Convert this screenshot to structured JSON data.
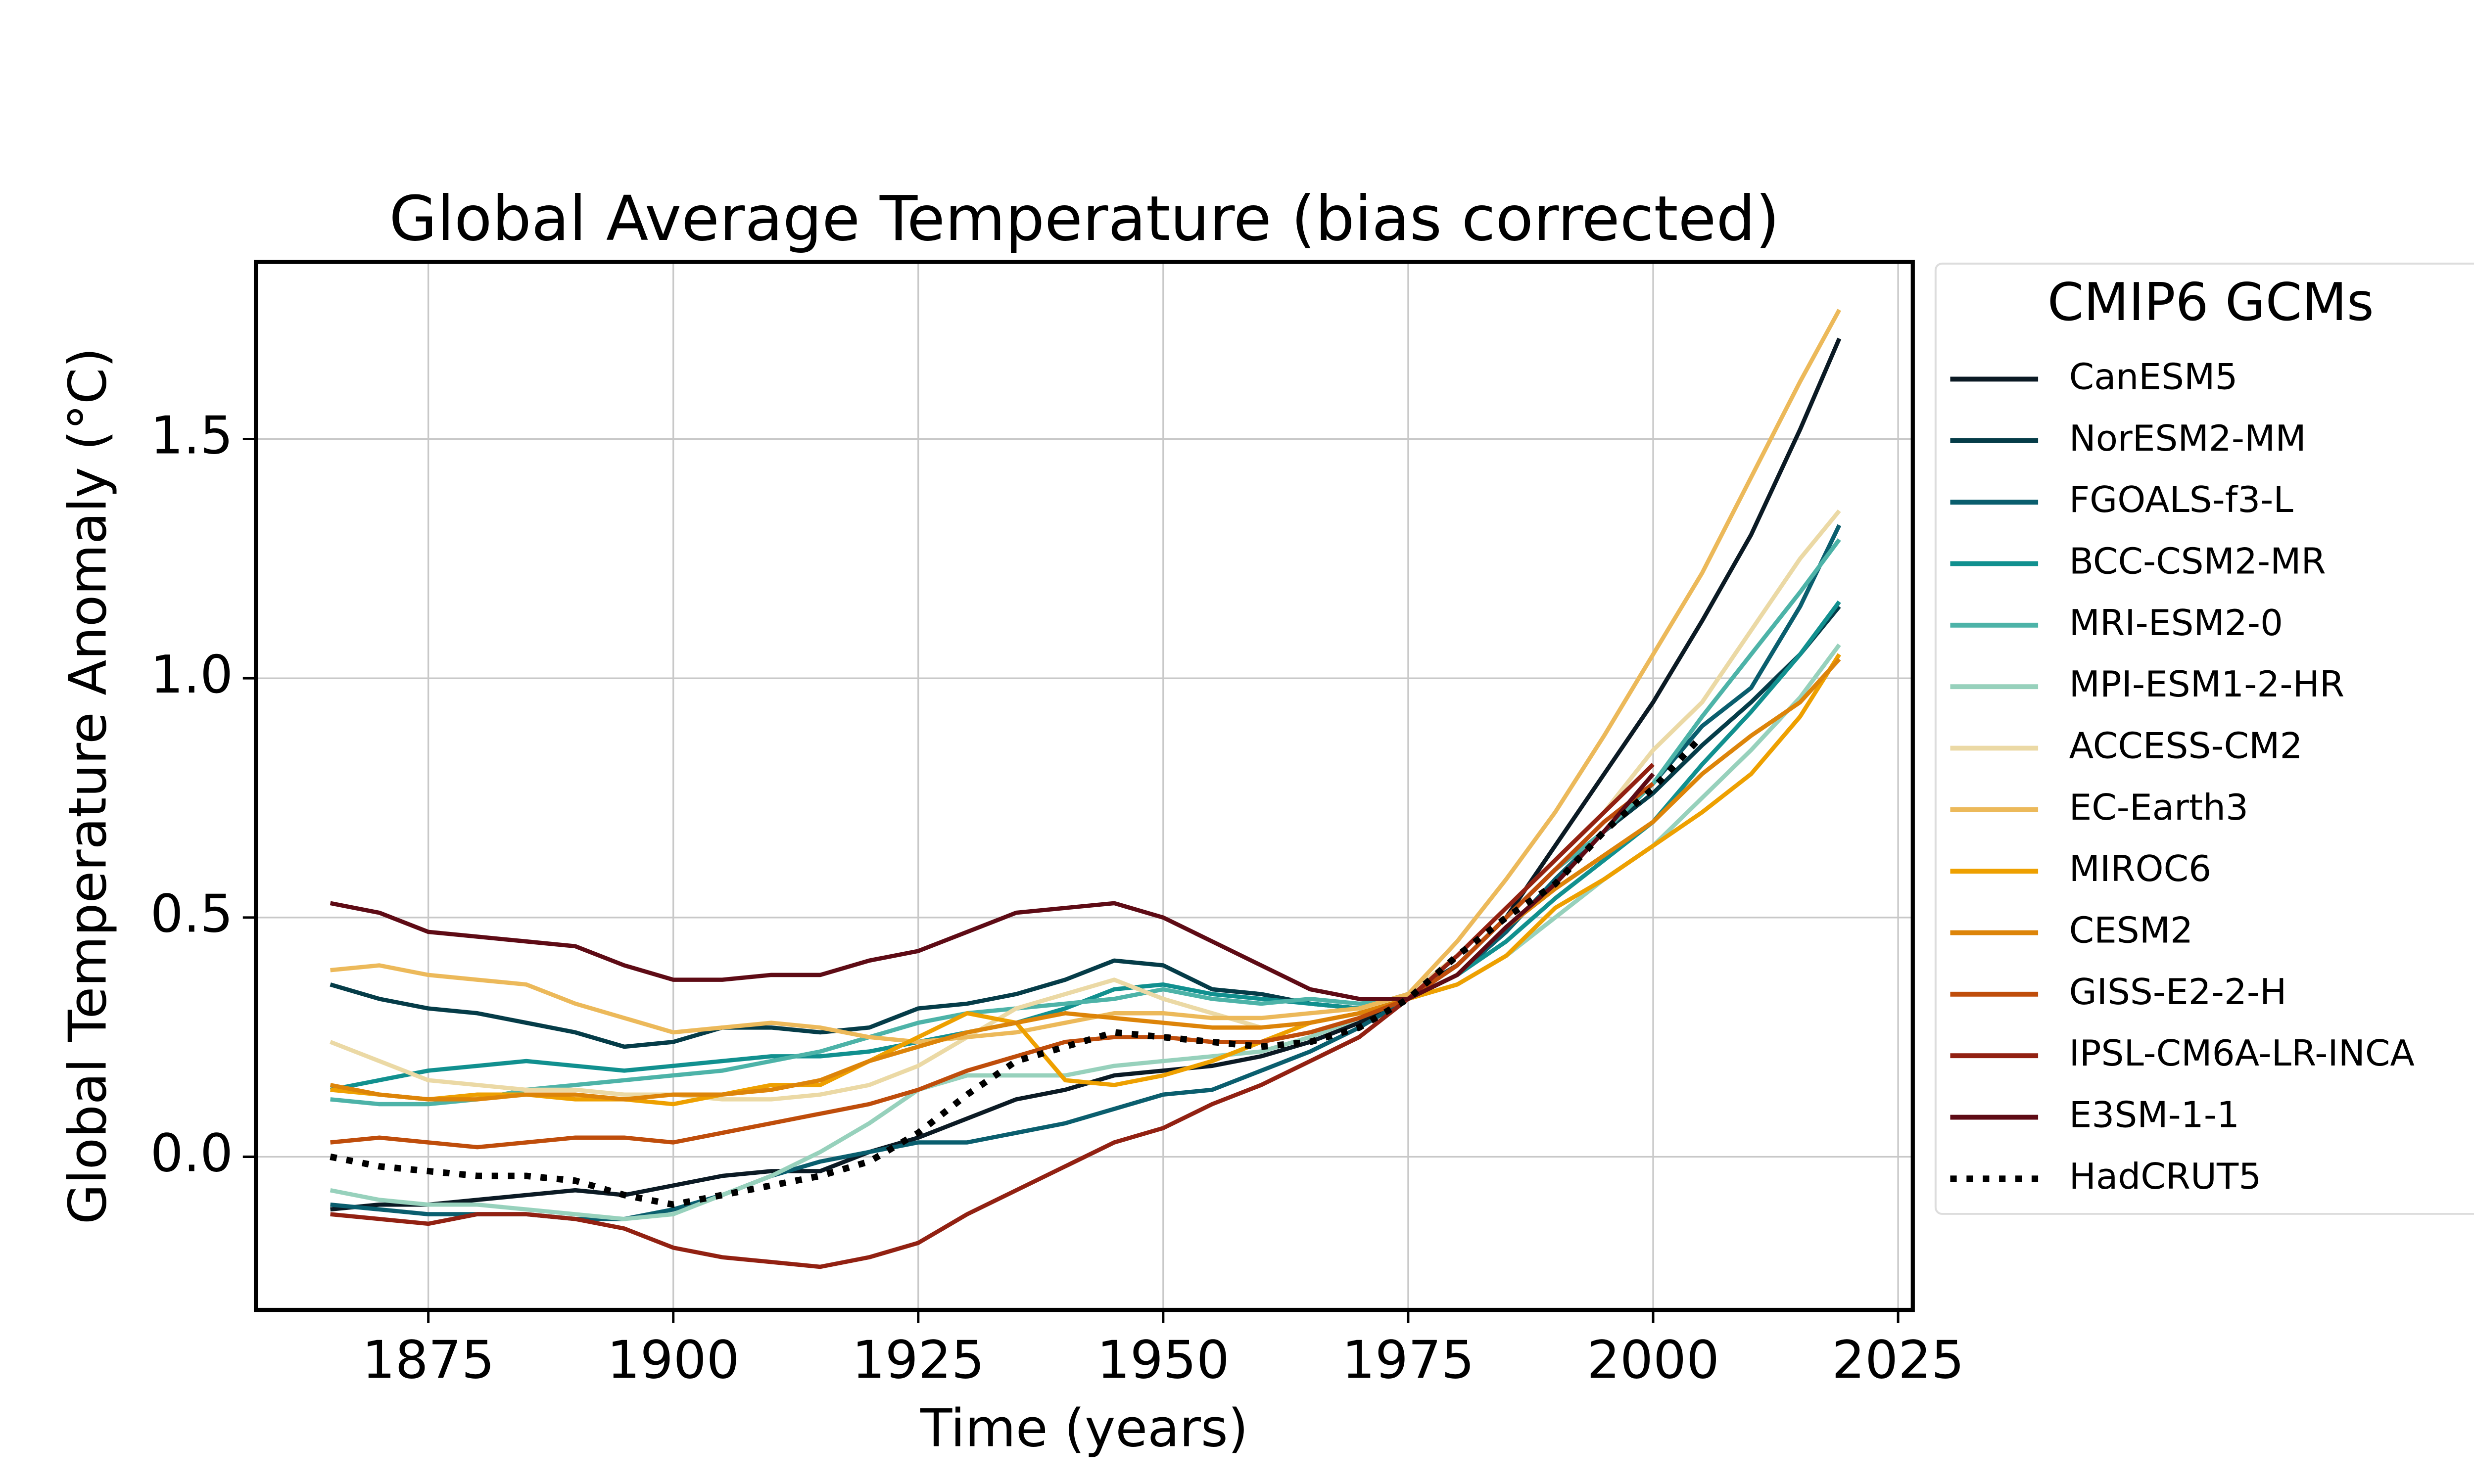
{
  "chart_data": {
    "type": "line",
    "title": "Global Average Temperature (bias corrected)",
    "xlabel": "Time (years)",
    "ylabel": "Global Temperature Anomaly (°C)",
    "legend_title": "CMIP6 GCMs",
    "grid": true,
    "xlim": [
      1857.4,
      2026.5
    ],
    "ylim": [
      -0.32,
      1.87
    ],
    "xticks": [
      1875,
      1900,
      1925,
      1950,
      1975,
      2000,
      2025
    ],
    "yticks": [
      {
        "value": 0,
        "label": "0.0"
      },
      0.5,
      {
        "value": 1,
        "label": "1.0"
      },
      1.5
    ],
    "x": [
      1865,
      1870,
      1875,
      1880,
      1885,
      1890,
      1895,
      1900,
      1905,
      1910,
      1915,
      1920,
      1925,
      1930,
      1935,
      1940,
      1945,
      1950,
      1955,
      1960,
      1965,
      1970,
      1975,
      1980,
      1985,
      1990,
      1995,
      2000,
      2005,
      2010,
      2015,
      2019
    ],
    "series": [
      {
        "name": "CanESM5",
        "color": "#0b1a24",
        "values": [
          -0.11,
          -0.1,
          -0.1,
          -0.09,
          -0.08,
          -0.07,
          -0.08,
          -0.06,
          -0.04,
          -0.03,
          -0.03,
          0.01,
          0.04,
          0.08,
          0.12,
          0.14,
          0.17,
          0.18,
          0.19,
          0.21,
          0.24,
          0.28,
          0.34,
          0.4,
          0.5,
          0.65,
          0.8,
          0.95,
          1.12,
          1.3,
          1.52,
          1.71
        ]
      },
      {
        "name": "NorESM2-MM",
        "color": "#053c48",
        "values": [
          0.36,
          0.33,
          0.31,
          0.3,
          0.28,
          0.26,
          0.23,
          0.24,
          0.27,
          0.27,
          0.26,
          0.27,
          0.31,
          0.32,
          0.34,
          0.37,
          0.41,
          0.4,
          0.35,
          0.34,
          0.32,
          0.31,
          0.34,
          0.4,
          0.5,
          0.6,
          0.68,
          0.76,
          0.86,
          0.95,
          1.05,
          1.15
        ]
      },
      {
        "name": "FGOALS-f3-L",
        "color": "#0a5e6e",
        "values": [
          -0.1,
          -0.11,
          -0.12,
          -0.12,
          -0.12,
          -0.13,
          -0.13,
          -0.11,
          -0.08,
          -0.04,
          -0.01,
          0.01,
          0.03,
          0.03,
          0.05,
          0.07,
          0.1,
          0.13,
          0.14,
          0.18,
          0.22,
          0.27,
          0.33,
          0.38,
          0.47,
          0.58,
          0.68,
          0.78,
          0.9,
          0.98,
          1.15,
          1.32
        ]
      },
      {
        "name": "BCC-CSM2-MR",
        "color": "#11908f",
        "values": [
          0.14,
          0.16,
          0.18,
          0.19,
          0.2,
          0.19,
          0.18,
          0.19,
          0.2,
          0.21,
          0.21,
          0.22,
          0.24,
          0.26,
          0.28,
          0.31,
          0.35,
          0.36,
          0.34,
          0.33,
          0.32,
          0.31,
          0.33,
          0.38,
          0.45,
          0.54,
          0.62,
          0.7,
          0.82,
          0.93,
          1.05,
          1.16
        ]
      },
      {
        "name": "MRI-ESM2-0",
        "color": "#4db3a8",
        "values": [
          0.12,
          0.11,
          0.11,
          0.12,
          0.14,
          0.15,
          0.16,
          0.17,
          0.18,
          0.2,
          0.22,
          0.25,
          0.28,
          0.3,
          0.31,
          0.32,
          0.33,
          0.35,
          0.33,
          0.32,
          0.33,
          0.32,
          0.33,
          0.4,
          0.5,
          0.6,
          0.68,
          0.78,
          0.92,
          1.05,
          1.18,
          1.29
        ]
      },
      {
        "name": "MPI-ESM1-2-HR",
        "color": "#97d1bc",
        "values": [
          -0.07,
          -0.09,
          -0.1,
          -0.1,
          -0.11,
          -0.12,
          -0.13,
          -0.12,
          -0.08,
          -0.04,
          0.01,
          0.07,
          0.14,
          0.17,
          0.17,
          0.17,
          0.19,
          0.2,
          0.21,
          0.22,
          0.25,
          0.29,
          0.33,
          0.36,
          0.42,
          0.5,
          0.58,
          0.65,
          0.75,
          0.85,
          0.96,
          1.07
        ]
      },
      {
        "name": "ACCESS-CM2",
        "color": "#ebd9a5",
        "values": [
          0.24,
          0.2,
          0.16,
          0.15,
          0.14,
          0.14,
          0.13,
          0.13,
          0.12,
          0.12,
          0.13,
          0.15,
          0.19,
          0.25,
          0.31,
          0.34,
          0.37,
          0.33,
          0.3,
          0.27,
          0.28,
          0.3,
          0.34,
          0.42,
          0.52,
          0.62,
          0.72,
          0.85,
          0.95,
          1.1,
          1.25,
          1.35
        ]
      },
      {
        "name": "EC-Earth3",
        "color": "#ecb95a",
        "values": [
          0.39,
          0.4,
          0.38,
          0.37,
          0.36,
          0.32,
          0.29,
          0.26,
          0.27,
          0.28,
          0.27,
          0.25,
          0.24,
          0.25,
          0.26,
          0.28,
          0.3,
          0.3,
          0.29,
          0.29,
          0.3,
          0.31,
          0.34,
          0.45,
          0.58,
          0.72,
          0.88,
          1.05,
          1.22,
          1.42,
          1.62,
          1.77
        ]
      },
      {
        "name": "MIROC6",
        "color": "#eea000",
        "values": [
          0.14,
          0.13,
          0.12,
          0.13,
          0.13,
          0.12,
          0.12,
          0.11,
          0.13,
          0.15,
          0.15,
          0.2,
          0.25,
          0.3,
          0.28,
          0.16,
          0.15,
          0.17,
          0.2,
          0.24,
          0.28,
          0.3,
          0.33,
          0.36,
          0.42,
          0.52,
          0.58,
          0.65,
          0.72,
          0.8,
          0.92,
          1.05
        ]
      },
      {
        "name": "CESM2",
        "color": "#dd8409",
        "values": [
          0.15,
          0.13,
          0.12,
          0.12,
          0.13,
          0.13,
          0.12,
          0.13,
          0.13,
          0.14,
          0.16,
          0.2,
          0.23,
          0.26,
          0.28,
          0.3,
          0.29,
          0.28,
          0.27,
          0.27,
          0.28,
          0.3,
          0.33,
          0.38,
          0.48,
          0.56,
          0.63,
          0.7,
          0.8,
          0.88,
          0.95,
          1.04
        ]
      },
      {
        "name": "GISS-E2-2-H",
        "color": "#bf4d0b",
        "values": [
          0.03,
          0.04,
          0.03,
          0.02,
          0.03,
          0.04,
          0.04,
          0.03,
          0.05,
          0.07,
          0.09,
          0.11,
          0.14,
          0.18,
          0.21,
          0.24,
          0.25,
          0.25,
          0.24,
          0.24,
          0.26,
          0.29,
          0.33,
          0.4,
          0.5,
          0.6,
          0.7,
          0.78,
          null,
          null,
          null,
          null
        ]
      },
      {
        "name": "IPSL-CM6A-LR-INCA",
        "color": "#922112",
        "values": [
          -0.12,
          -0.13,
          -0.14,
          -0.12,
          -0.12,
          -0.13,
          -0.15,
          -0.19,
          -0.21,
          -0.22,
          -0.23,
          -0.21,
          -0.18,
          -0.12,
          -0.07,
          -0.02,
          0.03,
          0.06,
          0.11,
          0.15,
          0.2,
          0.25,
          0.33,
          0.42,
          0.52,
          0.62,
          0.72,
          0.82,
          null,
          null,
          null,
          null
        ]
      },
      {
        "name": "E3SM-1-1",
        "color": "#5e0b15",
        "values": [
          0.53,
          0.51,
          0.47,
          0.46,
          0.45,
          0.44,
          0.4,
          0.37,
          0.37,
          0.38,
          0.38,
          0.41,
          0.43,
          0.47,
          0.51,
          0.52,
          0.53,
          0.5,
          0.45,
          0.4,
          0.35,
          0.33,
          0.33,
          0.38,
          0.48,
          0.57,
          0.68,
          0.8,
          null,
          null,
          null,
          null
        ]
      },
      {
        "name": "HadCRUT5",
        "color": "#000000",
        "linestyle": "dotted",
        "values": [
          0.0,
          -0.02,
          -0.03,
          -0.04,
          -0.04,
          -0.05,
          -0.08,
          -0.1,
          -0.08,
          -0.06,
          -0.04,
          -0.01,
          0.05,
          0.13,
          0.2,
          0.23,
          0.26,
          0.25,
          0.24,
          0.23,
          0.24,
          0.27,
          0.33,
          0.42,
          0.5,
          0.57,
          0.68,
          0.77,
          0.88,
          null,
          null,
          null
        ]
      }
    ]
  }
}
